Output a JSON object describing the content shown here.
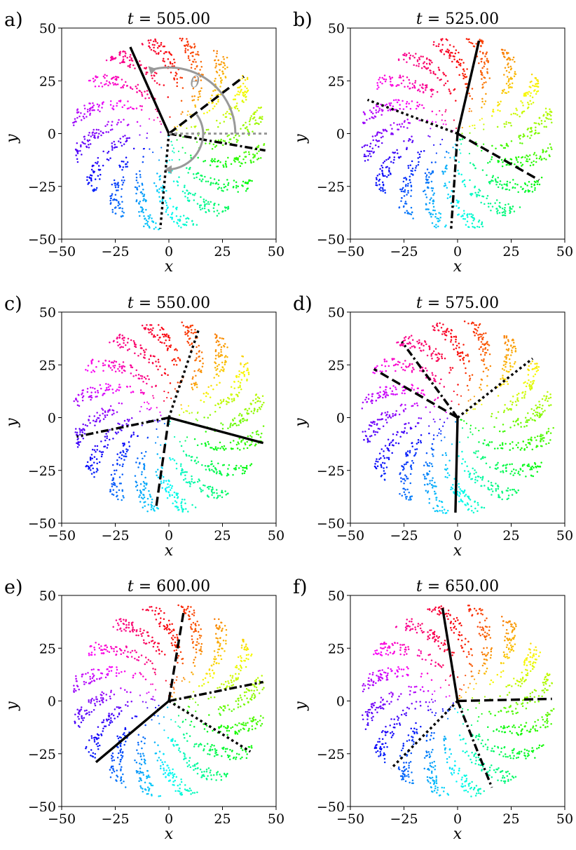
{
  "chart_data": [
    {
      "type": "scatter",
      "panel": "a)",
      "title_var": "t",
      "title_value": "505.00",
      "xlabel": "x",
      "ylabel": "y",
      "xlim": [
        -50,
        50
      ],
      "ylim": [
        -50,
        50
      ],
      "xticks": [
        "−50",
        "−25",
        "0",
        "25",
        "50"
      ],
      "yticks": [
        "−50",
        "−25",
        "0",
        "25",
        "50"
      ],
      "grid": false,
      "annotation": "θ",
      "spiral_arms": 16,
      "color_scale": "hue by polar angle",
      "lines": [
        {
          "style": "solid",
          "x": -18,
          "y": 41
        },
        {
          "style": "dashed",
          "x": 35,
          "y": 27
        },
        {
          "style": "dashdot",
          "x": 45,
          "y": -8
        },
        {
          "style": "dotted",
          "x": -4,
          "y": -45
        }
      ]
    },
    {
      "type": "scatter",
      "panel": "b)",
      "title_var": "t",
      "title_value": "525.00",
      "xlabel": "x",
      "ylabel": "y",
      "xlim": [
        -50,
        50
      ],
      "ylim": [
        -50,
        50
      ],
      "xticks": [
        "−50",
        "−25",
        "0",
        "25",
        "50"
      ],
      "yticks": [
        "−50",
        "−25",
        "0",
        "25",
        "50"
      ],
      "grid": false,
      "spiral_arms": 16,
      "color_scale": "hue by polar angle",
      "lines": [
        {
          "style": "solid",
          "x": 10,
          "y": 44
        },
        {
          "style": "dotted",
          "x": -42,
          "y": 16
        },
        {
          "style": "dashed",
          "x": 38,
          "y": -22
        },
        {
          "style": "dashdot",
          "x": -3,
          "y": -45
        }
      ]
    },
    {
      "type": "scatter",
      "panel": "c)",
      "title_var": "t",
      "title_value": "550.00",
      "xlabel": "x",
      "ylabel": "y",
      "xlim": [
        -50,
        50
      ],
      "ylim": [
        -50,
        50
      ],
      "xticks": [
        "−50",
        "−25",
        "0",
        "25",
        "50"
      ],
      "yticks": [
        "−50",
        "−25",
        "0",
        "25",
        "50"
      ],
      "grid": false,
      "spiral_arms": 16,
      "color_scale": "hue by polar angle",
      "lines": [
        {
          "style": "dotted",
          "x": 14,
          "y": 42
        },
        {
          "style": "dashdot",
          "x": -43,
          "y": -9
        },
        {
          "style": "solid",
          "x": 44,
          "y": -12
        },
        {
          "style": "dashed",
          "x": -6,
          "y": -43
        }
      ]
    },
    {
      "type": "scatter",
      "panel": "d)",
      "title_var": "t",
      "title_value": "575.00",
      "xlabel": "x",
      "ylabel": "y",
      "xlim": [
        -50,
        50
      ],
      "ylim": [
        -50,
        50
      ],
      "xticks": [
        "−50",
        "−25",
        "0",
        "25",
        "50"
      ],
      "yticks": [
        "−50",
        "−25",
        "0",
        "25",
        "50"
      ],
      "grid": false,
      "spiral_arms": 16,
      "color_scale": "hue by polar angle",
      "lines": [
        {
          "style": "dashdot",
          "x": -26,
          "y": 36
        },
        {
          "style": "dashed",
          "x": -39,
          "y": 23
        },
        {
          "style": "dotted",
          "x": 35,
          "y": 28
        },
        {
          "style": "solid",
          "x": -1,
          "y": -45
        }
      ]
    },
    {
      "type": "scatter",
      "panel": "e)",
      "title_var": "t",
      "title_value": "600.00",
      "xlabel": "x",
      "ylabel": "y",
      "xlim": [
        -50,
        50
      ],
      "ylim": [
        -50,
        50
      ],
      "xticks": [
        "−50",
        "−25",
        "0",
        "25",
        "50"
      ],
      "yticks": [
        "−50",
        "−25",
        "0",
        "25",
        "50"
      ],
      "grid": false,
      "spiral_arms": 16,
      "color_scale": "hue by polar angle",
      "lines": [
        {
          "style": "dashed",
          "x": 7,
          "y": 43
        },
        {
          "style": "dashdot",
          "x": 44,
          "y": 9
        },
        {
          "style": "dotted",
          "x": 38,
          "y": -24
        },
        {
          "style": "solid",
          "x": -34,
          "y": -29
        }
      ]
    },
    {
      "type": "scatter",
      "panel": "f)",
      "title_var": "t",
      "title_value": "650.00",
      "xlabel": "x",
      "ylabel": "y",
      "xlim": [
        -50,
        50
      ],
      "ylim": [
        -50,
        50
      ],
      "xticks": [
        "−50",
        "−25",
        "0",
        "25",
        "50"
      ],
      "yticks": [
        "−50",
        "−25",
        "0",
        "25",
        "50"
      ],
      "grid": false,
      "spiral_arms": 16,
      "color_scale": "hue by polar angle",
      "lines": [
        {
          "style": "solid",
          "x": -7,
          "y": 44
        },
        {
          "style": "dashed",
          "x": 44,
          "y": 1
        },
        {
          "style": "dotted",
          "x": -31,
          "y": -32
        },
        {
          "style": "dashdot",
          "x": 16,
          "y": -41
        }
      ]
    }
  ]
}
